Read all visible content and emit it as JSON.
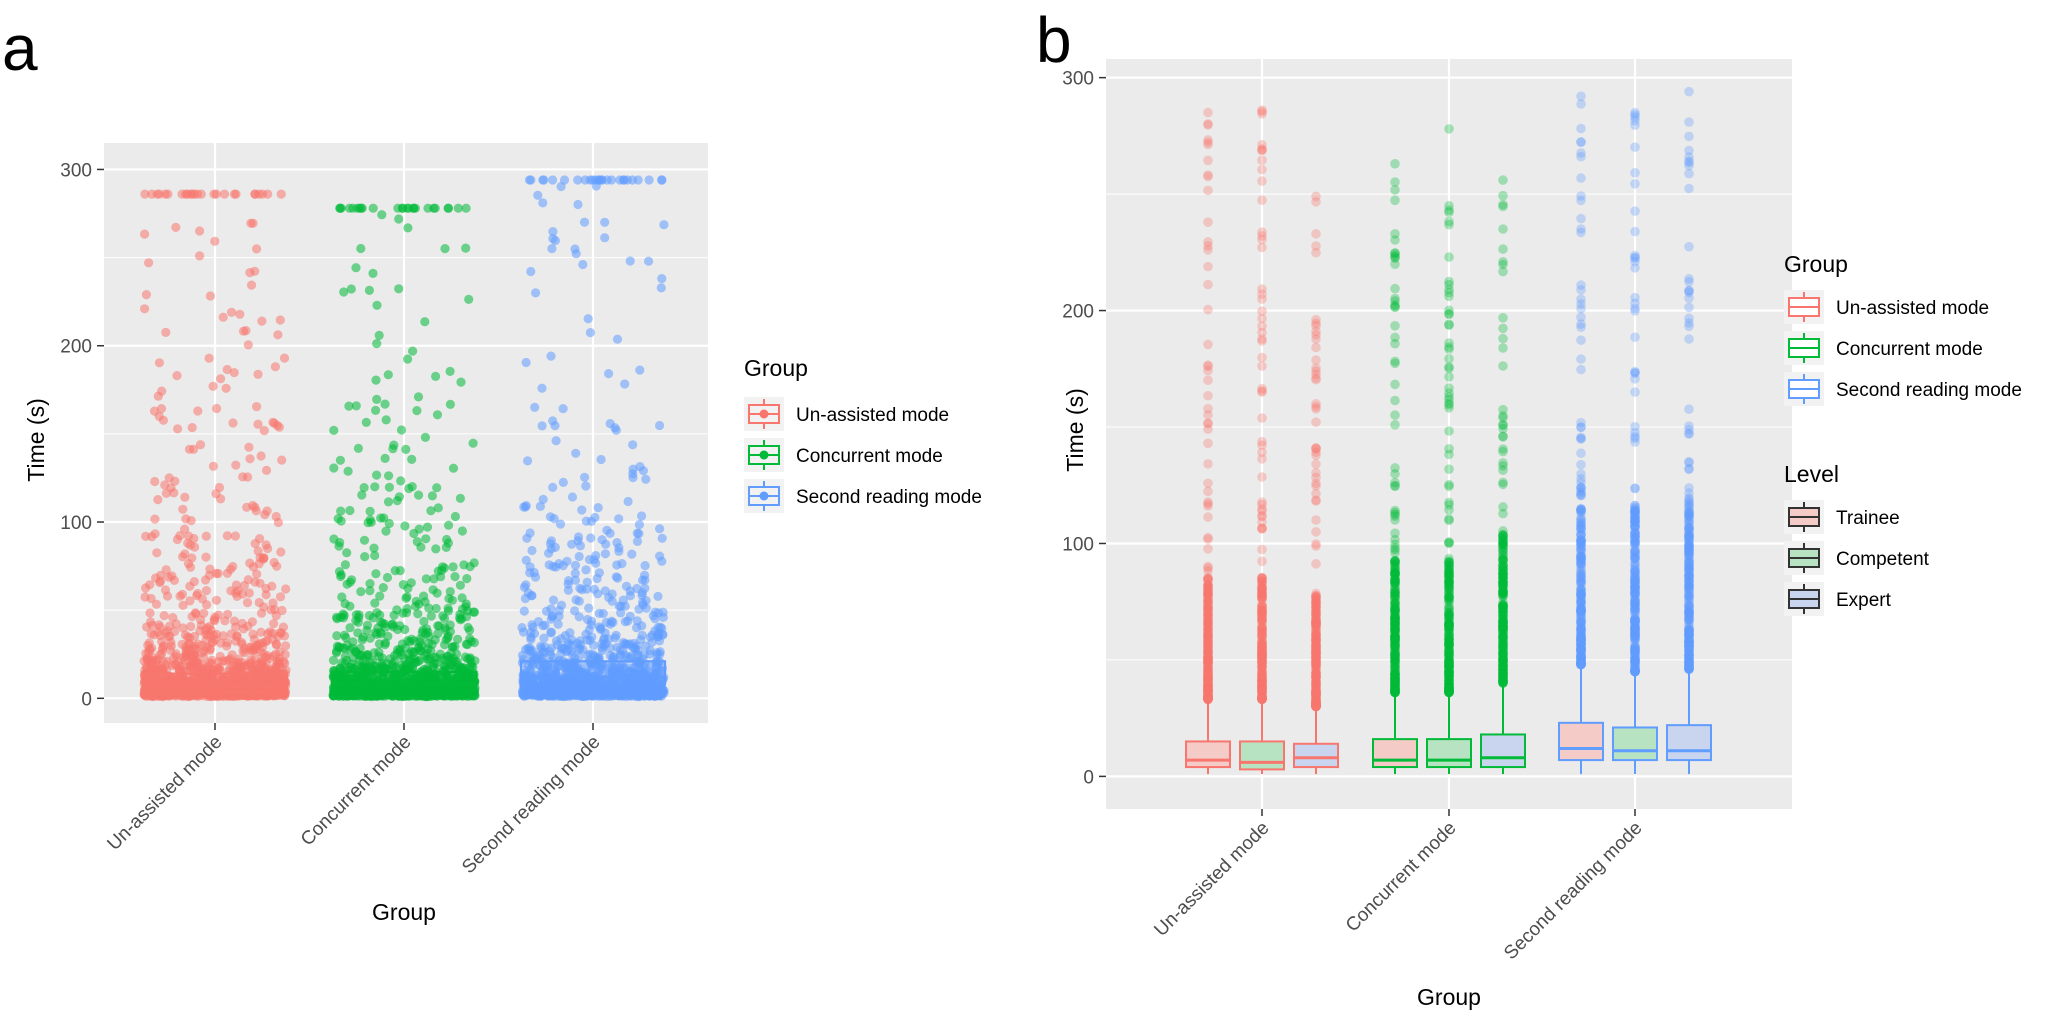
{
  "chart_data": [
    {
      "panel": "a",
      "type": "box+jitter",
      "title": "",
      "xlabel": "Group",
      "ylabel": "Time (s)",
      "ylim": [
        -14,
        315
      ],
      "yticks": [
        0,
        100,
        200,
        300
      ],
      "categories": [
        "Un-assisted mode",
        "Concurrent mode",
        "Second reading mode"
      ],
      "colors": [
        "#F8766D",
        "#00BA38",
        "#619CFF"
      ],
      "boxes": [
        {
          "group": "Un-assisted mode",
          "q1": 4,
          "median": 7,
          "q3": 14,
          "max_outlier": 286
        },
        {
          "group": "Concurrent mode",
          "q1": 5,
          "median": 8,
          "q3": 15,
          "max_outlier": 278
        },
        {
          "group": "Second reading mode",
          "q1": 8,
          "median": 12,
          "q3": 21,
          "max_outlier": 294
        }
      ],
      "legend": {
        "title": "Group",
        "position": "right",
        "entries": [
          "Un-assisted mode",
          "Concurrent mode",
          "Second reading mode"
        ]
      }
    },
    {
      "panel": "b",
      "type": "box",
      "title": "",
      "xlabel": "Group",
      "ylabel": "Time (s)",
      "ylim": [
        -14,
        308
      ],
      "yticks": [
        0,
        100,
        200,
        300
      ],
      "categories": [
        "Un-assisted mode",
        "Concurrent mode",
        "Second reading mode"
      ],
      "levels": [
        "Trainee",
        "Competent",
        "Expert"
      ],
      "group_colors": [
        "#F8766D",
        "#00BA38",
        "#619CFF"
      ],
      "level_fills": [
        "#F4CBC7",
        "#B7E3C2",
        "#C9D5EE"
      ],
      "boxes": [
        {
          "group": "Un-assisted mode",
          "level": "Trainee",
          "q1": 4,
          "median": 7,
          "q3": 15,
          "whisker_high": 33,
          "max_outlier": 285
        },
        {
          "group": "Un-assisted mode",
          "level": "Competent",
          "q1": 3,
          "median": 6,
          "q3": 15,
          "whisker_high": 33,
          "max_outlier": 286
        },
        {
          "group": "Un-assisted mode",
          "level": "Expert",
          "q1": 4,
          "median": 8,
          "q3": 14,
          "whisker_high": 30,
          "max_outlier": 249
        },
        {
          "group": "Concurrent mode",
          "level": "Trainee",
          "q1": 4,
          "median": 7,
          "q3": 16,
          "whisker_high": 36,
          "max_outlier": 263
        },
        {
          "group": "Concurrent mode",
          "level": "Competent",
          "q1": 4,
          "median": 7,
          "q3": 16,
          "whisker_high": 36,
          "max_outlier": 278
        },
        {
          "group": "Concurrent mode",
          "level": "Expert",
          "q1": 4,
          "median": 8,
          "q3": 18,
          "whisker_high": 40,
          "max_outlier": 256
        },
        {
          "group": "Second reading mode",
          "level": "Trainee",
          "q1": 7,
          "median": 12,
          "q3": 23,
          "whisker_high": 48,
          "max_outlier": 292
        },
        {
          "group": "Second reading mode",
          "level": "Competent",
          "q1": 7,
          "median": 11,
          "q3": 21,
          "whisker_high": 45,
          "max_outlier": 285
        },
        {
          "group": "Second reading mode",
          "level": "Expert",
          "q1": 7,
          "median": 11,
          "q3": 22,
          "whisker_high": 46,
          "max_outlier": 294
        }
      ],
      "legends": [
        {
          "title": "Group",
          "position": "right-top",
          "entries": [
            "Un-assisted mode",
            "Concurrent mode",
            "Second reading mode"
          ]
        },
        {
          "title": "Level",
          "position": "right-middle",
          "entries": [
            "Trainee",
            "Competent",
            "Expert"
          ]
        }
      ]
    }
  ]
}
